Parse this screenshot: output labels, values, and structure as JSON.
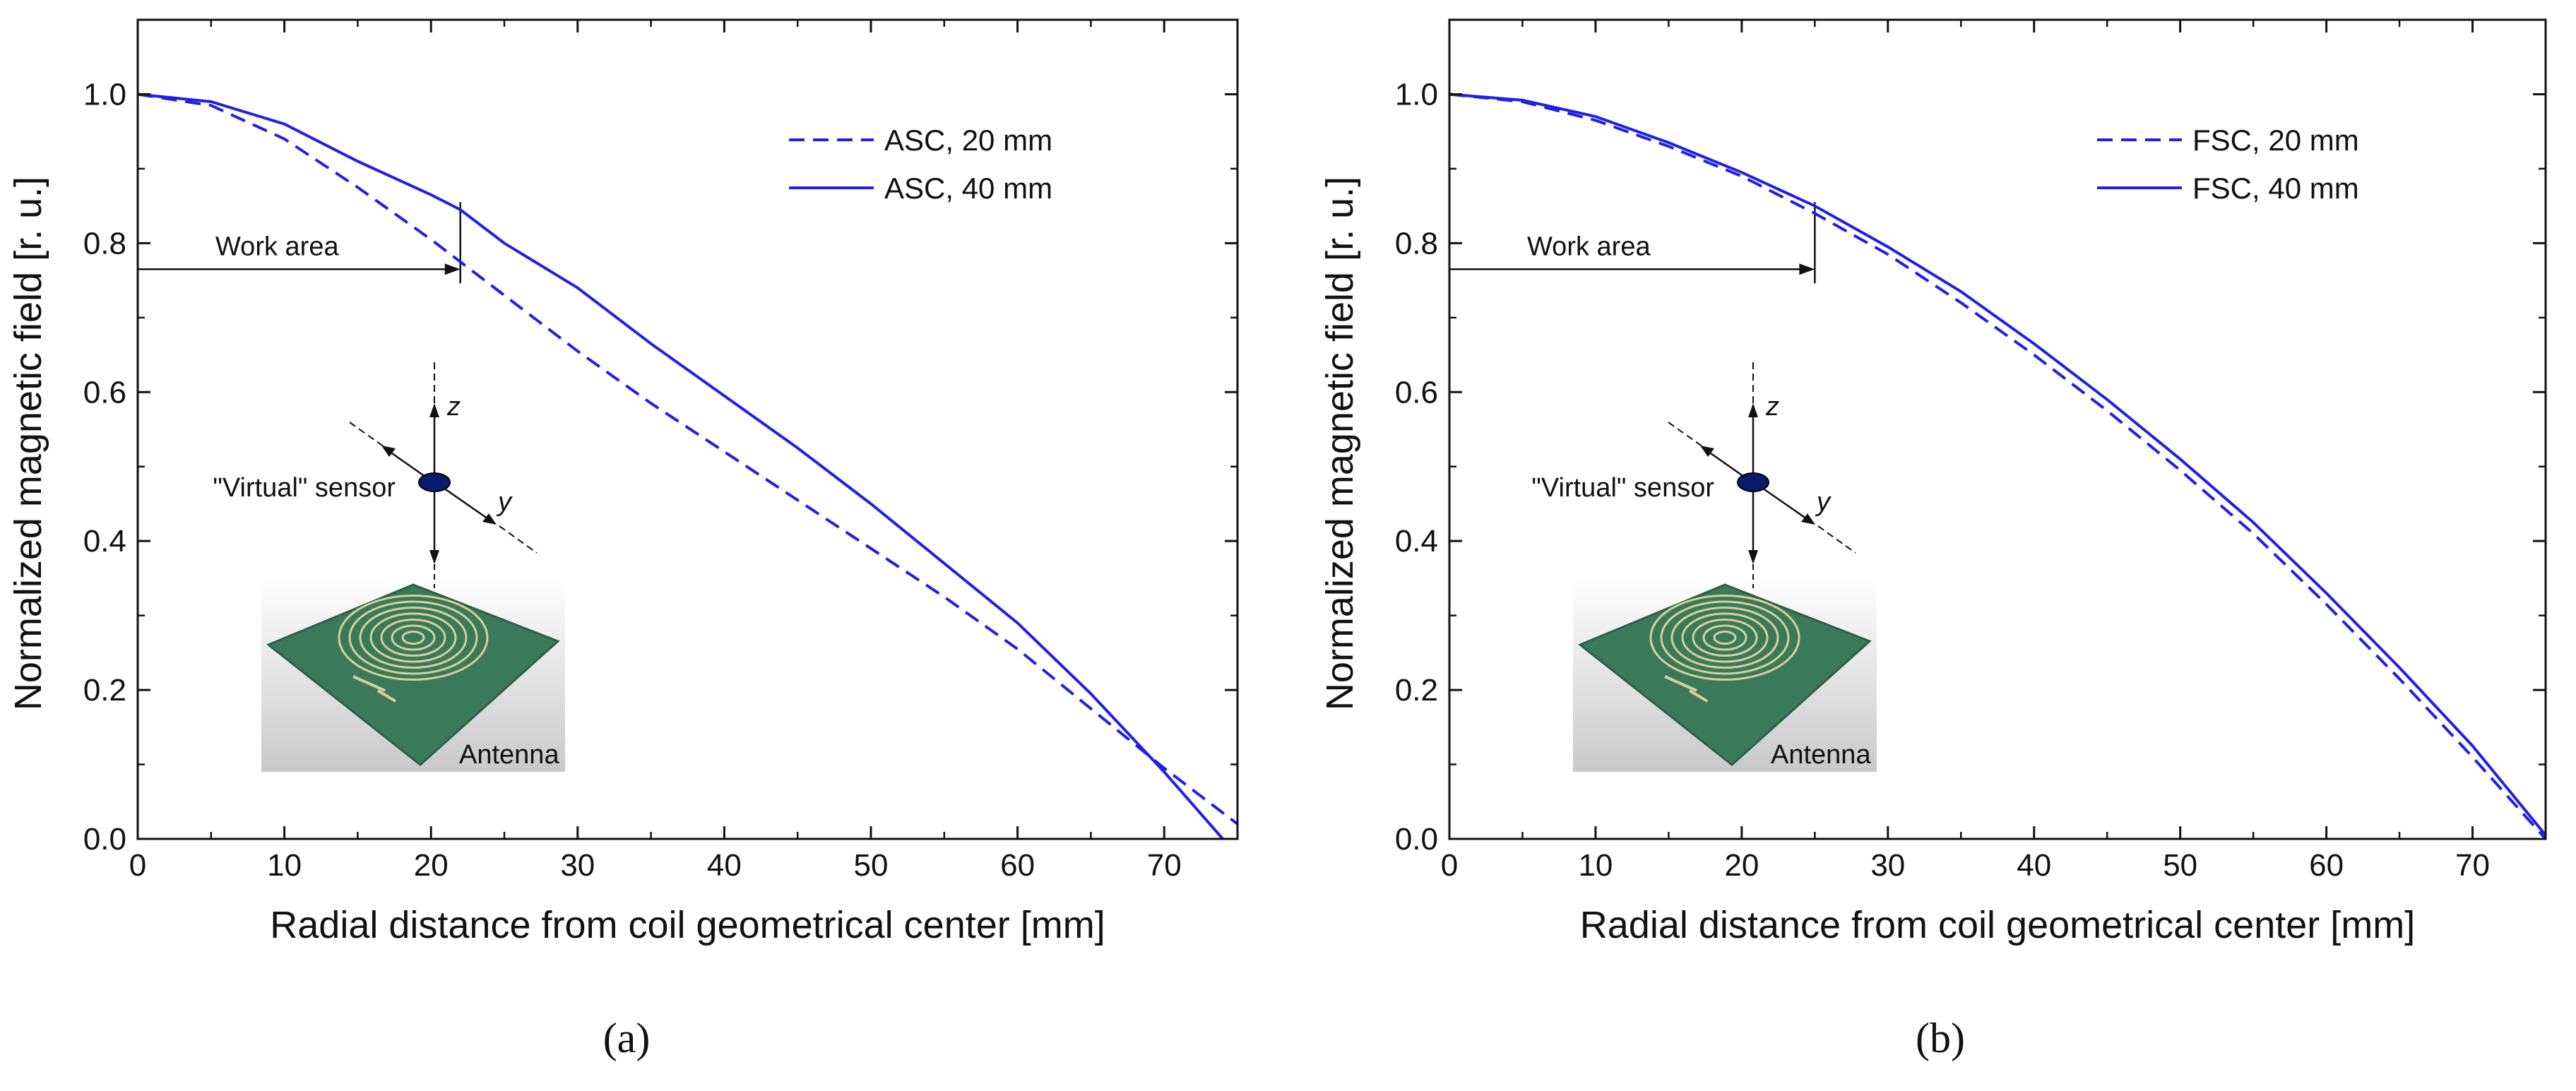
{
  "chart_data": [
    {
      "type": "line",
      "panel_label": "(a)",
      "xlabel": "Radial distance from coil geometrical center [mm]",
      "ylabel": "Normalized magnetic field [r. u.]",
      "xlim": [
        0,
        75
      ],
      "ylim": [
        0,
        1.1
      ],
      "xticks": [
        0,
        10,
        20,
        30,
        40,
        50,
        60,
        70
      ],
      "yticks": [
        0.0,
        0.2,
        0.4,
        0.6,
        0.8,
        1.0
      ],
      "xtick_labels": [
        "0",
        "10",
        "20",
        "30",
        "40",
        "50",
        "60",
        "70"
      ],
      "ytick_labels": [
        "0.0",
        "0.2",
        "0.4",
        "0.6",
        "0.8",
        "1.0"
      ],
      "legend_position": "top-right",
      "series": [
        {
          "name": "ASC, 20 mm",
          "style": "dashed",
          "color": "#1f1fe8",
          "x": [
            0,
            5,
            10,
            15,
            20,
            25,
            30,
            35,
            40,
            45,
            50,
            55,
            60,
            65,
            70,
            75
          ],
          "y": [
            1.0,
            0.985,
            0.94,
            0.875,
            0.805,
            0.73,
            0.655,
            0.585,
            0.52,
            0.455,
            0.39,
            0.325,
            0.255,
            0.175,
            0.095,
            0.02
          ]
        },
        {
          "name": "ASC, 40 mm",
          "style": "solid",
          "color": "#1f1fe8",
          "x": [
            0,
            5,
            10,
            15,
            20,
            22,
            25,
            30,
            35,
            40,
            45,
            50,
            55,
            60,
            65,
            70,
            74
          ],
          "y": [
            1.0,
            0.99,
            0.96,
            0.91,
            0.865,
            0.845,
            0.8,
            0.74,
            0.665,
            0.595,
            0.525,
            0.45,
            0.37,
            0.29,
            0.195,
            0.09,
            0.0
          ]
        }
      ],
      "annotations": {
        "work_area_label": "Work area",
        "work_area_end_x": 22,
        "work_area_y": 0.765,
        "sensor_label": "\"Virtual\" sensor",
        "z_label": "z",
        "y_label": "y",
        "antenna_label": "Antenna"
      }
    },
    {
      "type": "line",
      "panel_label": "(b)",
      "xlabel": "Radial distance from coil geometrical center [mm]",
      "ylabel": "Normalized magnetic field [r. u.]",
      "xlim": [
        0,
        75
      ],
      "ylim": [
        0,
        1.1
      ],
      "xticks": [
        0,
        10,
        20,
        30,
        40,
        50,
        60,
        70
      ],
      "yticks": [
        0.0,
        0.2,
        0.4,
        0.6,
        0.8,
        1.0
      ],
      "xtick_labels": [
        "0",
        "10",
        "20",
        "30",
        "40",
        "50",
        "60",
        "70"
      ],
      "ytick_labels": [
        "0.0",
        "0.2",
        "0.4",
        "0.6",
        "0.8",
        "1.0"
      ],
      "legend_position": "top-right",
      "series": [
        {
          "name": "FSC, 20 mm",
          "style": "dashed",
          "color": "#1f1fe8",
          "x": [
            0,
            5,
            10,
            15,
            20,
            25,
            30,
            35,
            40,
            45,
            50,
            55,
            60,
            65,
            70,
            75
          ],
          "y": [
            1.0,
            0.99,
            0.965,
            0.93,
            0.89,
            0.84,
            0.785,
            0.72,
            0.65,
            0.575,
            0.495,
            0.41,
            0.315,
            0.215,
            0.11,
            0.0
          ]
        },
        {
          "name": "FSC, 40 mm",
          "style": "solid",
          "color": "#1f1fe8",
          "x": [
            0,
            5,
            10,
            15,
            20,
            25,
            30,
            35,
            40,
            45,
            50,
            55,
            60,
            65,
            70,
            75
          ],
          "y": [
            1.0,
            0.992,
            0.97,
            0.935,
            0.895,
            0.85,
            0.795,
            0.735,
            0.665,
            0.59,
            0.51,
            0.425,
            0.33,
            0.23,
            0.125,
            0.005
          ]
        }
      ],
      "annotations": {
        "work_area_label": "Work area",
        "work_area_end_x": 25,
        "work_area_y": 0.765,
        "sensor_label": "\"Virtual\" sensor",
        "z_label": "z",
        "y_label": "y",
        "antenna_label": "Antenna"
      }
    }
  ]
}
